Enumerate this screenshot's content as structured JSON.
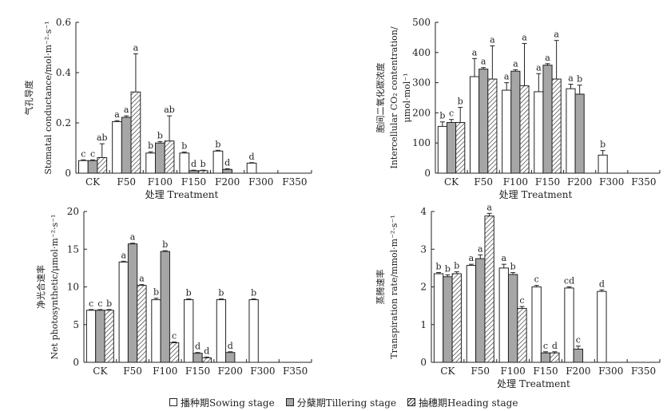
{
  "legend": {
    "sowing": "播种期Sowing stage",
    "tillering": "分蘖期Tillering stage",
    "heading": "抽穗期Heading stage"
  },
  "colors": {
    "sowing": "#ffffff",
    "tillering": "#a6a6a6",
    "heading": "hatched",
    "stroke": "#222222"
  },
  "chart_data": [
    {
      "id": "stomatal",
      "type": "bar",
      "ylabel_cn": "气孔导度",
      "ylabel_en": "Stomatal conductance/mol·m⁻²·s⁻¹",
      "xlabel": "处理 Treatment",
      "categories": [
        "CK",
        "F50",
        "F100",
        "F150",
        "F200",
        "F300",
        "F350"
      ],
      "ylim": [
        0,
        0.6
      ],
      "yticks": [
        "0",
        "0.2",
        "0.4",
        "0.6"
      ],
      "ytick_values": [
        0,
        0.2,
        0.4,
        0.6
      ],
      "series": [
        {
          "name": "播种期Sowing stage",
          "values": [
            0.05,
            0.205,
            0.08,
            0.08,
            0.088,
            0.04,
            null
          ],
          "errors": [
            0.003,
            0.004,
            0.005,
            0.004,
            0.003,
            0.002,
            null
          ],
          "letters": [
            "c",
            "a",
            "b",
            "b",
            "b",
            "d",
            ""
          ]
        },
        {
          "name": "分蘖期Tillering stage",
          "values": [
            0.05,
            0.222,
            0.12,
            0.01,
            0.015,
            null,
            null
          ],
          "errors": [
            0.003,
            0.006,
            0.006,
            0.002,
            0.003,
            null,
            null
          ],
          "letters": [
            "c",
            "a",
            "b",
            "d",
            "d",
            "",
            ""
          ]
        },
        {
          "name": "抽穗期Heading stage",
          "values": [
            0.062,
            0.323,
            0.128,
            0.01,
            null,
            null,
            null
          ],
          "errors": [
            0.055,
            0.152,
            0.1,
            0.002,
            null,
            null,
            null
          ],
          "letters": [
            "ab",
            "a",
            "ab",
            "b",
            "",
            "",
            ""
          ]
        }
      ]
    },
    {
      "id": "intercellular",
      "type": "bar",
      "ylabel_cn": "胞间二氧化碳浓度",
      "ylabel_en": "Intercellular CO₂ contentration/",
      "ylabel_unit": "μmol·mol⁻¹",
      "xlabel": "处理 Treatment",
      "categories": [
        "CK",
        "F50",
        "F100",
        "F150",
        "F200",
        "F300",
        "F350"
      ],
      "ylim": [
        0,
        500
      ],
      "yticks": [
        "0",
        "100",
        "200",
        "300",
        "400",
        "500"
      ],
      "ytick_values": [
        0,
        100,
        200,
        300,
        400,
        500
      ],
      "series": [
        {
          "name": "播种期Sowing stage",
          "values": [
            155,
            320,
            275,
            270,
            280,
            60,
            null
          ],
          "errors": [
            15,
            60,
            25,
            60,
            15,
            15,
            null
          ],
          "letters": [
            "b",
            "a",
            "a",
            "a",
            "a",
            "b",
            ""
          ]
        },
        {
          "name": "分蘖期Tillering stage",
          "values": [
            168,
            345,
            338,
            358,
            262,
            null,
            null
          ],
          "errors": [
            10,
            5,
            5,
            5,
            30,
            null,
            null
          ],
          "letters": [
            "c",
            "a",
            "a",
            "a",
            "b",
            "",
            ""
          ]
        },
        {
          "name": "抽穗期Heading stage",
          "values": [
            168,
            312,
            290,
            312,
            null,
            null,
            null
          ],
          "errors": [
            50,
            110,
            140,
            128,
            null,
            null,
            null
          ],
          "letters": [
            "b",
            "a",
            "a",
            "a",
            "",
            "",
            ""
          ]
        }
      ]
    },
    {
      "id": "photosynthetic",
      "type": "bar",
      "ylabel_cn": "净光合速率",
      "ylabel_en": "Net photosynthetic/μmol·m⁻²·s⁻¹",
      "xlabel": "",
      "categories": [
        "CK",
        "F50",
        "F100",
        "F150",
        "F200",
        "F300",
        "F350"
      ],
      "ylim": [
        0,
        20
      ],
      "yticks": [
        "0",
        "5",
        "10",
        "15",
        "20"
      ],
      "ytick_values": [
        0,
        5,
        10,
        15,
        20
      ],
      "series": [
        {
          "name": "播种期Sowing stage",
          "values": [
            6.9,
            13.3,
            8.3,
            8.3,
            8.3,
            8.3,
            null
          ],
          "errors": [
            0.1,
            0.1,
            0.2,
            0.1,
            0.1,
            0.1,
            null
          ],
          "letters": [
            "c",
            "a",
            "b",
            "b",
            "b",
            "b",
            ""
          ]
        },
        {
          "name": "分蘖期Tillering stage",
          "values": [
            6.9,
            15.7,
            14.7,
            1.2,
            1.3,
            null,
            null
          ],
          "errors": [
            0.1,
            0.1,
            0.1,
            0.1,
            0.1,
            null,
            null
          ],
          "letters": [
            "c",
            "a",
            "b",
            "d",
            "d",
            "",
            ""
          ]
        },
        {
          "name": "抽穗期Heading stage",
          "values": [
            6.9,
            10.2,
            2.6,
            0.6,
            null,
            null,
            null
          ],
          "errors": [
            0.1,
            0.1,
            0.1,
            0.1,
            null,
            null,
            null
          ],
          "letters": [
            "b",
            "a",
            "c",
            "d",
            "",
            "",
            ""
          ]
        }
      ]
    },
    {
      "id": "transpiration",
      "type": "bar",
      "ylabel_cn": "蒸腾速率",
      "ylabel_en": "Transpiration rate/mmol·m⁻²·s⁻¹",
      "xlabel": "处理 Treatment",
      "categories": [
        "CK",
        "F50",
        "F100",
        "F150",
        "F200",
        "F300",
        "F350"
      ],
      "ylim": [
        0,
        4
      ],
      "yticks": [
        "0",
        "1",
        "2",
        "3",
        "4"
      ],
      "ytick_values": [
        0,
        1,
        2,
        3,
        4
      ],
      "series": [
        {
          "name": "播种期Sowing stage",
          "values": [
            2.35,
            2.57,
            2.5,
            2.0,
            1.97,
            1.88,
            null
          ],
          "errors": [
            0.03,
            0.03,
            0.1,
            0.04,
            0.03,
            0.04,
            null
          ],
          "letters": [
            "b",
            "a",
            "a",
            "c",
            "cd",
            "d",
            ""
          ]
        },
        {
          "name": "分蘖期Tillering stage",
          "values": [
            2.27,
            2.75,
            2.33,
            0.25,
            0.35,
            null,
            null
          ],
          "errors": [
            0.05,
            0.1,
            0.05,
            0.03,
            0.08,
            null,
            null
          ],
          "letters": [
            "b",
            "a",
            "b",
            "c",
            "c",
            "",
            ""
          ]
        },
        {
          "name": "抽穗期Heading stage",
          "values": [
            2.35,
            3.88,
            1.43,
            0.25,
            null,
            null,
            null
          ],
          "errors": [
            0.05,
            0.07,
            0.05,
            0.03,
            null,
            null,
            null
          ],
          "letters": [
            "b",
            "a",
            "c",
            "d",
            "",
            "",
            ""
          ]
        }
      ]
    }
  ]
}
